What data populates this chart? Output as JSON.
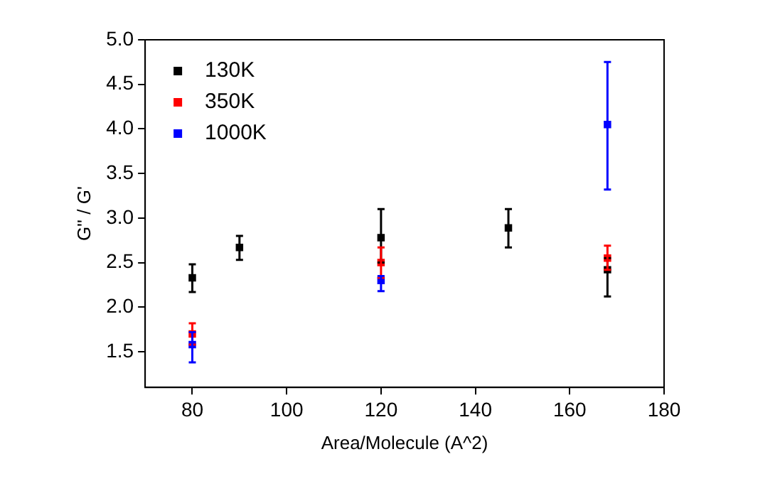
{
  "chart_data": {
    "type": "scatter",
    "xlabel": "Area/Molecule (A^2)",
    "ylabel": "G'' / G'",
    "xlim": [
      70,
      180
    ],
    "xticks": [
      80,
      100,
      120,
      140,
      160,
      180
    ],
    "ylim": [
      1.1,
      5.0
    ],
    "yticks": [
      1.5,
      {
        "value": 2,
        "label": "2.0"
      },
      2.5,
      {
        "value": 3,
        "label": "3.0"
      },
      3.5,
      {
        "value": 4,
        "label": "4.0"
      },
      4.5,
      {
        "value": 5,
        "label": "5.0"
      }
    ],
    "grid": false,
    "legend": "top left",
    "marker": "square",
    "series": [
      {
        "name": "130K",
        "color": "#000000",
        "x": [
          80,
          90,
          120,
          147,
          168
        ],
        "values": [
          2.33,
          2.67,
          2.78,
          2.89,
          2.42
        ],
        "errors": [
          [
            2.17,
            2.48
          ],
          [
            2.53,
            2.8
          ],
          [
            2.5,
            3.1
          ],
          [
            2.67,
            3.1
          ],
          [
            2.12,
            2.55
          ]
        ]
      },
      {
        "name": "350K",
        "color": "#ff0000",
        "x": [
          80,
          120,
          168
        ],
        "values": [
          1.7,
          2.5,
          2.55
        ],
        "errors": [
          [
            1.58,
            1.82
          ],
          [
            2.33,
            2.67
          ],
          [
            2.42,
            2.69
          ]
        ]
      },
      {
        "name": "1000K",
        "color": "#0000ff",
        "x": [
          80,
          120,
          168
        ],
        "values": [
          1.58,
          2.3,
          4.05
        ],
        "errors": [
          [
            1.38,
            1.72
          ],
          [
            2.18,
            2.35
          ],
          [
            3.32,
            4.75
          ]
        ]
      }
    ]
  }
}
